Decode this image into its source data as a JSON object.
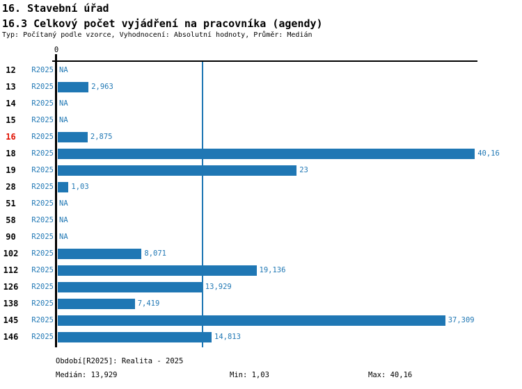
{
  "header": {
    "title_line1": "16. Stavební úřad",
    "title_line2": "16.3 Celkový počet vyjádření na pracovníka (agendy)",
    "meta_line": "Typ: Počítaný podle vzorce, Vyhodnocení: Absolutní hodnoty, Průměr: Medián"
  },
  "chart_data": {
    "type": "bar",
    "orientation": "horizontal",
    "xlabel": "",
    "ylabel": "",
    "xlim": [
      0,
      40.4
    ],
    "axis_zero_label": "0",
    "median_value": 13.929,
    "series_name": "R2025",
    "highlighted_category": "16",
    "rows": [
      {
        "category": "12",
        "series": "R2025",
        "value": null,
        "label": "NA"
      },
      {
        "category": "13",
        "series": "R2025",
        "value": 2.963,
        "label": "2,963"
      },
      {
        "category": "14",
        "series": "R2025",
        "value": null,
        "label": "NA"
      },
      {
        "category": "15",
        "series": "R2025",
        "value": null,
        "label": "NA"
      },
      {
        "category": "16",
        "series": "R2025",
        "value": 2.875,
        "label": "2,875"
      },
      {
        "category": "18",
        "series": "R2025",
        "value": 40.16,
        "label": "40,16"
      },
      {
        "category": "19",
        "series": "R2025",
        "value": 23,
        "label": "23"
      },
      {
        "category": "28",
        "series": "R2025",
        "value": 1.03,
        "label": "1,03"
      },
      {
        "category": "51",
        "series": "R2025",
        "value": null,
        "label": "NA"
      },
      {
        "category": "58",
        "series": "R2025",
        "value": null,
        "label": "NA"
      },
      {
        "category": "90",
        "series": "R2025",
        "value": null,
        "label": "NA"
      },
      {
        "category": "102",
        "series": "R2025",
        "value": 8.071,
        "label": "8,071"
      },
      {
        "category": "112",
        "series": "R2025",
        "value": 19.136,
        "label": "19,136"
      },
      {
        "category": "126",
        "series": "R2025",
        "value": 13.929,
        "label": "13,929"
      },
      {
        "category": "138",
        "series": "R2025",
        "value": 7.419,
        "label": "7,419"
      },
      {
        "category": "145",
        "series": "R2025",
        "value": 37.309,
        "label": "37,309"
      },
      {
        "category": "146",
        "series": "R2025",
        "value": 14.813,
        "label": "14,813"
      }
    ],
    "colors": {
      "bar": "#1f77b4",
      "blue_text": "#1f77b4",
      "median_line": "#1f77b4",
      "highlight_red": "#e01000",
      "axis": "#000000"
    }
  },
  "footer": {
    "period_label": "Období[R2025]: Realita - 2025",
    "median_label": "Medián: 13,929",
    "min_label": "Min: 1,03",
    "max_label": "Max: 40,16"
  }
}
